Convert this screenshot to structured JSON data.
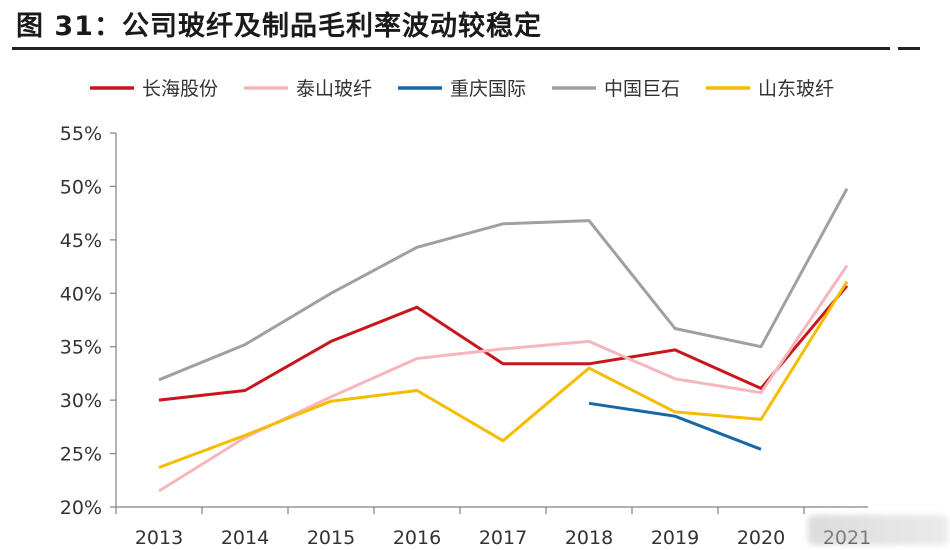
{
  "figure": {
    "title": "图 31：公司玻纤及制品毛利率波动较稳定"
  },
  "chart_data": {
    "type": "line",
    "title": "图 31：公司玻纤及制品毛利率波动较稳定",
    "xlabel": "",
    "ylabel": "",
    "categories": [
      "2013",
      "2014",
      "2015",
      "2016",
      "2017",
      "2018",
      "2019",
      "2020",
      "2021"
    ],
    "ylim": [
      0.2,
      0.55
    ],
    "yticks": [
      "20%",
      "25%",
      "30%",
      "35%",
      "40%",
      "45%",
      "50%",
      "55%"
    ],
    "ytick_values": [
      0.2,
      0.25,
      0.3,
      0.35,
      0.4,
      0.45,
      0.5,
      0.55
    ],
    "grid": false,
    "legend_position": "top",
    "series": [
      {
        "name": "长海股份",
        "color": "#c8161d",
        "values": [
          0.3,
          0.309,
          0.355,
          0.387,
          0.334,
          0.334,
          0.347,
          0.311,
          0.407
        ]
      },
      {
        "name": "泰山玻纤",
        "color": "#f6b6bd",
        "values": [
          0.215,
          0.265,
          0.303,
          0.339,
          0.348,
          0.355,
          0.32,
          0.307,
          0.426
        ]
      },
      {
        "name": "重庆国际",
        "color": "#1868a8",
        "values": [
          null,
          null,
          null,
          null,
          null,
          0.297,
          0.285,
          0.254,
          null
        ]
      },
      {
        "name": "中国巨石",
        "color": "#a0a0a0",
        "values": [
          0.319,
          0.352,
          0.4,
          0.443,
          0.465,
          0.468,
          0.367,
          0.35,
          0.498
        ]
      },
      {
        "name": "山东玻纤",
        "color": "#f5bd00",
        "values": [
          0.237,
          0.267,
          0.299,
          0.309,
          0.262,
          0.33,
          0.289,
          0.282,
          0.411
        ]
      }
    ]
  }
}
